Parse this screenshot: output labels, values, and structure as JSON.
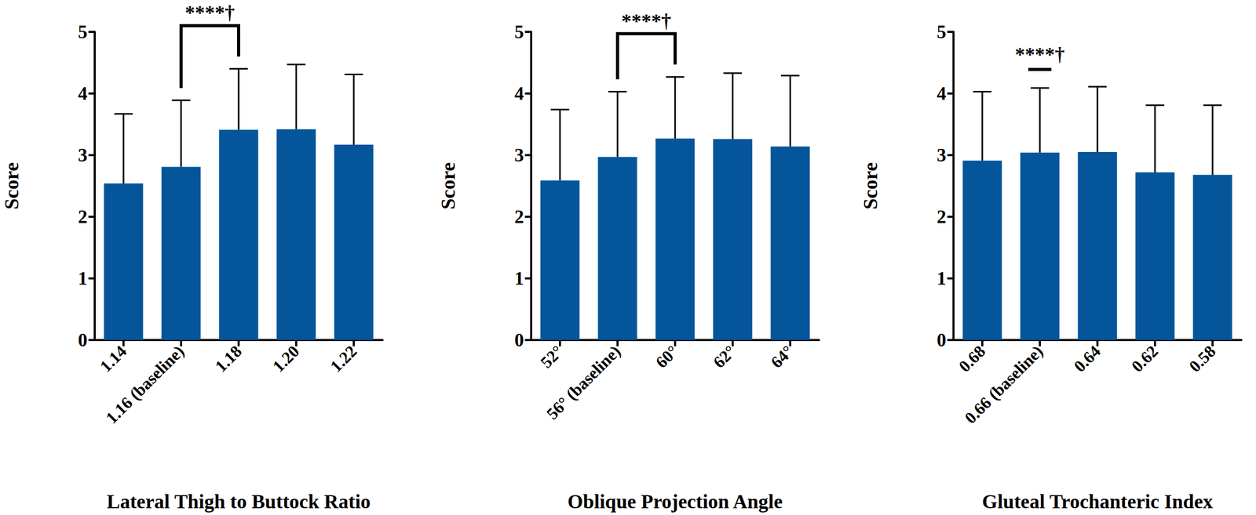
{
  "chart_data": [
    {
      "type": "bar",
      "x_label": "Lateral Thigh to Buttock Ratio",
      "y_label": "Score",
      "categories": [
        "1.14",
        "1.16 (baseline)",
        "1.18",
        "1.20",
        "1.22"
      ],
      "values": [
        2.54,
        2.81,
        3.41,
        3.42,
        3.17
      ],
      "errors": [
        1.13,
        1.08,
        0.99,
        1.05,
        1.14
      ],
      "color": "#04559a",
      "ylim": [
        0,
        5
      ],
      "yticks": [
        0,
        1,
        2,
        3,
        4,
        5
      ],
      "grid": false,
      "annotations": [
        {
          "text": "****†",
          "from": 1,
          "to": 2
        }
      ]
    },
    {
      "type": "bar",
      "x_label": "Oblique Projection Angle",
      "y_label": "Score",
      "categories": [
        "52°",
        "56° (baseline)",
        "60°",
        "62°",
        "64°"
      ],
      "values": [
        2.59,
        2.97,
        3.27,
        3.26,
        3.14
      ],
      "errors": [
        1.15,
        1.06,
        1.0,
        1.07,
        1.15
      ],
      "color": "#04559a",
      "ylim": [
        0,
        5
      ],
      "yticks": [
        0,
        1,
        2,
        3,
        4,
        5
      ],
      "grid": false,
      "annotations": [
        {
          "text": "****†",
          "from": 1,
          "to": 2
        }
      ]
    },
    {
      "type": "bar",
      "x_label": "Gluteal Trochanteric Index",
      "y_label": "Score",
      "categories": [
        "0.68",
        "0.66 (baseline)",
        "0.64",
        "0.62",
        "0.58"
      ],
      "values": [
        2.91,
        3.04,
        3.05,
        2.72,
        2.68
      ],
      "errors": [
        1.12,
        1.05,
        1.06,
        1.09,
        1.13
      ],
      "color": "#04559a",
      "ylim": [
        0,
        5
      ],
      "yticks": [
        0,
        1,
        2,
        3,
        4,
        5
      ],
      "grid": false,
      "annotations": [
        {
          "text": "****†",
          "from": 1,
          "to": 1
        }
      ]
    }
  ]
}
